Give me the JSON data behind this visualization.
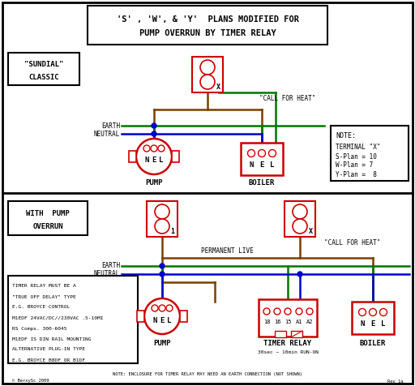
{
  "title_line1": "'S' , 'W', & 'Y'  PLANS MODIFIED FOR",
  "title_line2": "PUMP OVERRUN BY TIMER RELAY",
  "bg_color": "#ffffff",
  "border_color": "#000000",
  "red_color": "#cc0000",
  "green_color": "#007700",
  "blue_color": "#0000cc",
  "brown_color": "#7B3F00",
  "text_color": "#000000",
  "sundial_label1": "\"SUNDIAL\"",
  "sundial_label2": "CLASSIC",
  "pump_label": "PUMP",
  "boiler_label": "BOILER",
  "with_pump_label1": "WITH  PUMP",
  "with_pump_label2": "OVERRUN",
  "call_for_heat": "\"CALL FOR HEAT\"",
  "permanent_live": "PERMANENT LIVE",
  "earth_label": "EARTH",
  "neutral_label": "NEUTRAL",
  "note_title": "NOTE:",
  "note_line1": "TERMINAL \"X\"",
  "note_line2": "S-Plan = 10",
  "note_line3": "W-Plan = 7",
  "note_line4": "Y-Plan =  8",
  "timer_label": "TIMER RELAY",
  "timer_sub": "30sec ~ 10min RUN-ON",
  "info_lines": [
    "TIMER RELAY MUST BE A",
    "\"TRUE OFF DELAY\" TYPE",
    "E.G. BROYCE CONTROL",
    "M1EDF 24VAC/DC//230VAC .5-10MI",
    "RS Comps. 300-6045",
    "M1EDF IS DIN RAIL MOUNTING",
    "ALTERNATIVE PLUG-IN TYPE",
    "E.G. BROYCE B8DF OR B1DF"
  ],
  "bottom_note": "NOTE: ENCLOSURE FOR TIMER RELAY MAY NEED AN EARTH CONNECTION (NOT SHOWN)",
  "credit": "© BerxySc 2009",
  "rev": "Rev 1a"
}
